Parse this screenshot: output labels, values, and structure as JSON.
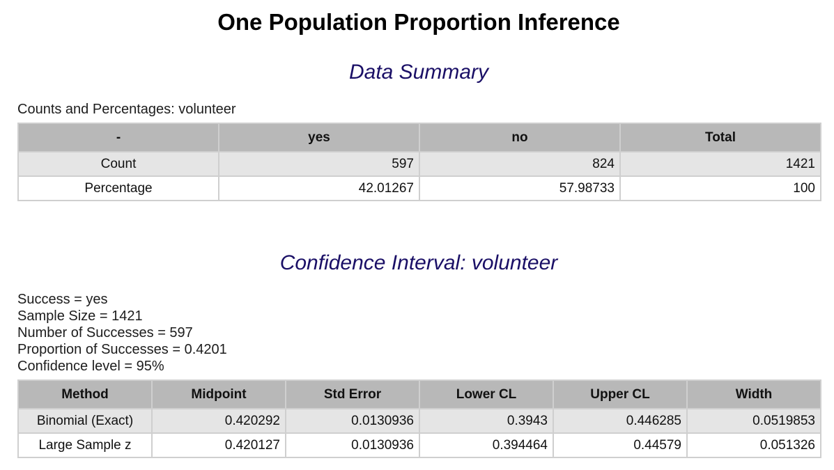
{
  "title": "One Population Proportion Inference",
  "data_summary": {
    "heading": "Data Summary",
    "caption": "Counts and Percentages: volunteer",
    "columns": [
      "-",
      "yes",
      "no",
      "Total"
    ],
    "rows": [
      {
        "label": "Count",
        "values": [
          "597",
          "824",
          "1421"
        ]
      },
      {
        "label": "Percentage",
        "values": [
          "42.01267",
          "57.98733",
          "100"
        ]
      }
    ]
  },
  "confidence_interval": {
    "heading": "Confidence Interval: volunteer",
    "info_lines": [
      "Success = yes",
      "Sample Size = 1421",
      "Number of Successes = 597",
      "Proportion of Successes = 0.4201",
      "Confidence level = 95%"
    ],
    "columns": [
      "Method",
      "Midpoint",
      "Std Error",
      "Lower CL",
      "Upper CL",
      "Width"
    ],
    "rows": [
      {
        "method": "Binomial (Exact)",
        "values": [
          "0.420292",
          "0.0130936",
          "0.3943",
          "0.446285",
          "0.0519853"
        ]
      },
      {
        "method": "Large Sample z",
        "values": [
          "0.420127",
          "0.0130936",
          "0.394464",
          "0.44579",
          "0.051326"
        ]
      }
    ]
  }
}
